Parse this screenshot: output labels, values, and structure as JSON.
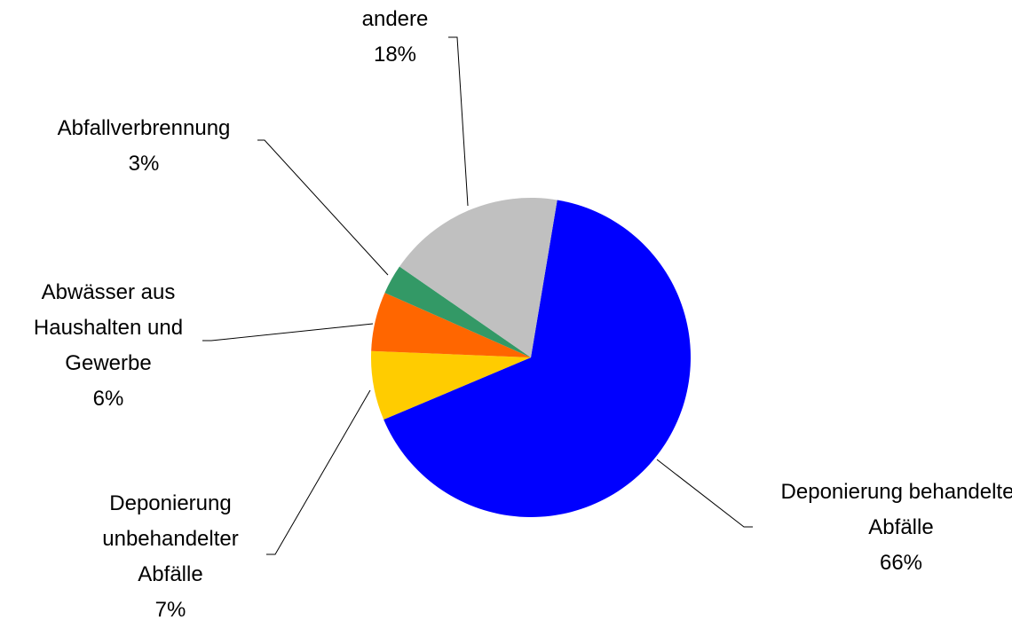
{
  "chart_data": {
    "type": "pie",
    "categories": [
      "Deponierung behandelter Abfälle",
      "Deponierung unbehandelter Abfälle",
      "Abwässer aus Haushalten und Gewerbe",
      "Abfallverbrennung",
      "andere"
    ],
    "values": [
      66,
      7,
      6,
      3,
      18
    ],
    "value_labels": [
      "66%",
      "7%",
      "6%",
      "3%",
      "18%"
    ],
    "colors": [
      "#0000ff",
      "#ffcc00",
      "#ff6600",
      "#339966",
      "#c0c0c0"
    ]
  }
}
